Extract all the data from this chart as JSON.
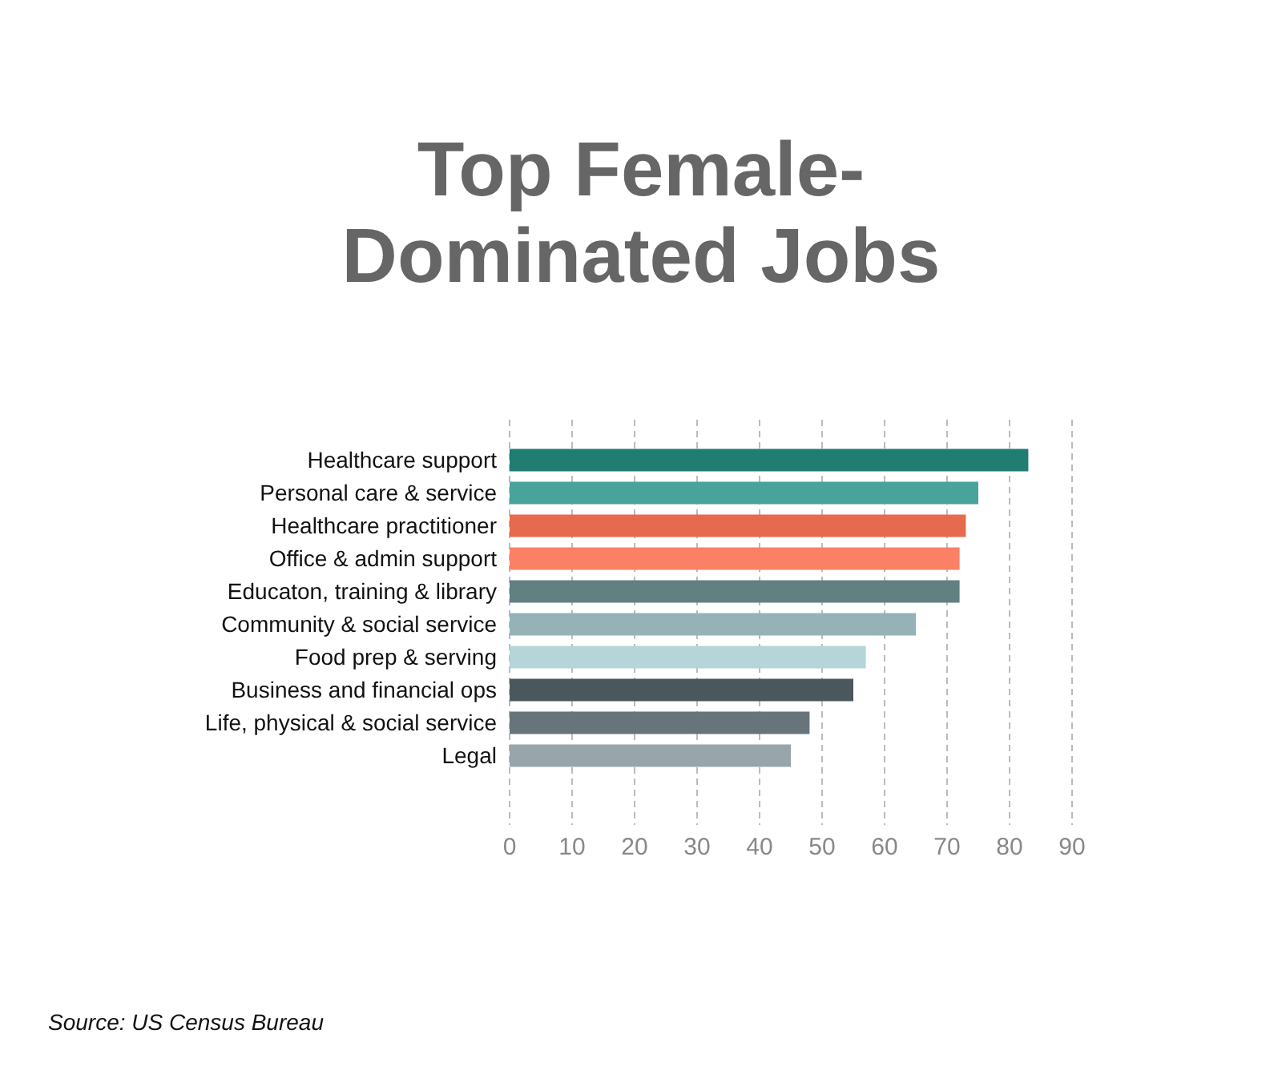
{
  "chart_data": {
    "type": "bar",
    "orientation": "horizontal",
    "title": "Top Female-\nDominated Jobs",
    "categories": [
      "Healthcare support",
      "Personal care & service",
      "Healthcare practitioner",
      "Office & admin support",
      "Educaton, training & library",
      "Community & social service",
      "Food prep & serving",
      "Business and financial ops",
      "Life, physical & social service",
      "Legal"
    ],
    "values": [
      83,
      75,
      73,
      72,
      72,
      65,
      57,
      55,
      48,
      45
    ],
    "colors": [
      "#217c72",
      "#48a39a",
      "#e56a4e",
      "#fa8066",
      "#627f82",
      "#95b3b6",
      "#b5d5d8",
      "#4a575c",
      "#67747a",
      "#98a5aa"
    ],
    "xlim": [
      0,
      90
    ],
    "xticks": [
      0,
      10,
      20,
      30,
      40,
      50,
      60,
      70,
      80,
      90
    ],
    "grid": "x",
    "annotations": [
      "Source: US Census Bureau"
    ]
  }
}
